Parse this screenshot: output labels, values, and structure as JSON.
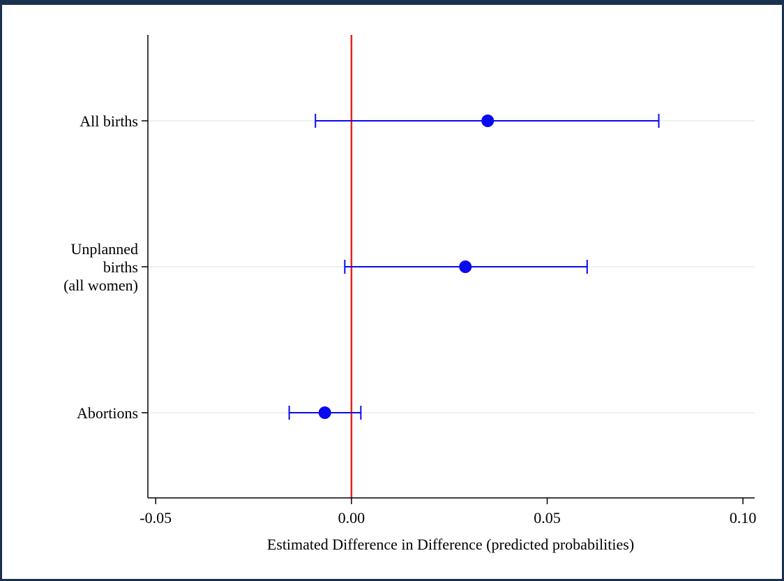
{
  "chart_data": {
    "type": "scatter",
    "subtype": "coefficient-plot",
    "title": "",
    "xlabel": "Estimated Difference in Difference (predicted probabilities)",
    "ylabel": "",
    "xlim": [
      -0.052,
      0.103
    ],
    "xticks": [
      -0.05,
      0.0,
      0.05,
      0.1
    ],
    "xtick_labels": [
      "-0.05",
      "0.00",
      "0.05",
      "0.10"
    ],
    "reference_line": {
      "x": 0.0,
      "color": "#e8201e"
    },
    "grid": "horizontal",
    "categories": [
      {
        "label_lines": [
          "All births"
        ],
        "estimate": 0.0348,
        "ci_low": -0.0092,
        "ci_high": 0.0785
      },
      {
        "label_lines": [
          "Unplanned",
          "births",
          "(all women)"
        ],
        "estimate": 0.0291,
        "ci_low": -0.0017,
        "ci_high": 0.0602
      },
      {
        "label_lines": [
          "Abortions"
        ],
        "estimate": -0.0068,
        "ci_low": -0.0159,
        "ci_high": 0.0024
      }
    ],
    "colors": {
      "marker": "#0a0af0",
      "reference": "#e8201e",
      "grid": "#eaf2f3",
      "axis": "#000000",
      "frame": "#1a3150"
    }
  }
}
